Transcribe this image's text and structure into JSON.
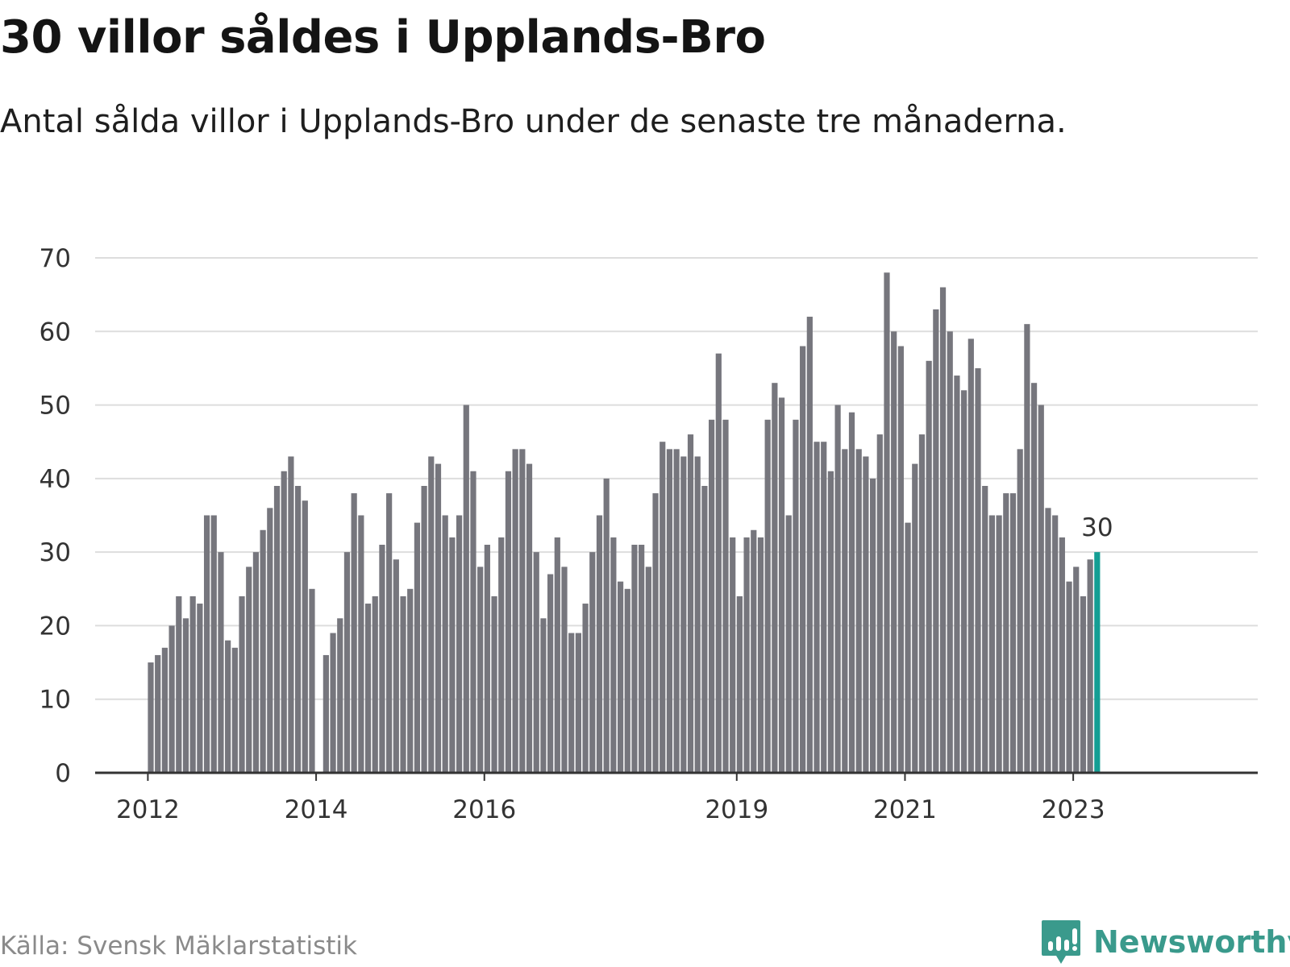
{
  "header": {
    "title": "30 villor såldes i Upplands-Bro",
    "subtitle": "Antal sålda villor i Upplands-Bro under de senaste tre månaderna."
  },
  "footer": {
    "source": "Källa: Svensk Mäklarstatistik",
    "brand": "Newsworthy"
  },
  "colors": {
    "bar": "#76767d",
    "highlight": "#149e94",
    "grid": "#dddddd",
    "axis": "#333333",
    "brand": "#3a9a8c"
  },
  "chart_data": {
    "type": "bar",
    "title": "30 villor såldes i Upplands-Bro",
    "xlabel": "",
    "ylabel": "",
    "ylim": [
      0,
      70
    ],
    "yticks": [
      0,
      10,
      20,
      30,
      40,
      50,
      60,
      70
    ],
    "grid": true,
    "start": "2012-01",
    "xtick_labels": [
      {
        "label": "2012",
        "index": 0
      },
      {
        "label": "2014",
        "index": 24
      },
      {
        "label": "2016",
        "index": 48
      },
      {
        "label": "2019",
        "index": 84
      },
      {
        "label": "2021",
        "index": 108
      },
      {
        "label": "2023",
        "index": 132
      }
    ],
    "values": [
      15,
      16,
      17,
      20,
      24,
      21,
      24,
      23,
      35,
      35,
      30,
      18,
      17,
      24,
      28,
      30,
      33,
      36,
      39,
      41,
      43,
      39,
      37,
      25,
      null,
      16,
      19,
      21,
      30,
      38,
      35,
      23,
      24,
      31,
      38,
      29,
      24,
      25,
      34,
      39,
      43,
      42,
      35,
      32,
      35,
      50,
      41,
      28,
      31,
      24,
      32,
      41,
      44,
      44,
      42,
      30,
      21,
      27,
      32,
      28,
      19,
      19,
      23,
      30,
      35,
      40,
      32,
      26,
      25,
      31,
      31,
      28,
      38,
      45,
      44,
      44,
      43,
      46,
      43,
      39,
      48,
      57,
      48,
      32,
      24,
      32,
      33,
      32,
      48,
      53,
      51,
      35,
      48,
      58,
      62,
      45,
      45,
      41,
      50,
      44,
      49,
      44,
      43,
      40,
      46,
      68,
      60,
      58,
      34,
      42,
      46,
      56,
      63,
      66,
      60,
      54,
      52,
      59,
      55,
      39,
      35,
      35,
      38,
      38,
      44,
      61,
      53,
      50,
      36,
      35,
      32,
      26,
      28,
      24,
      29,
      30
    ],
    "highlight_index": 135,
    "highlight_label": "30"
  }
}
